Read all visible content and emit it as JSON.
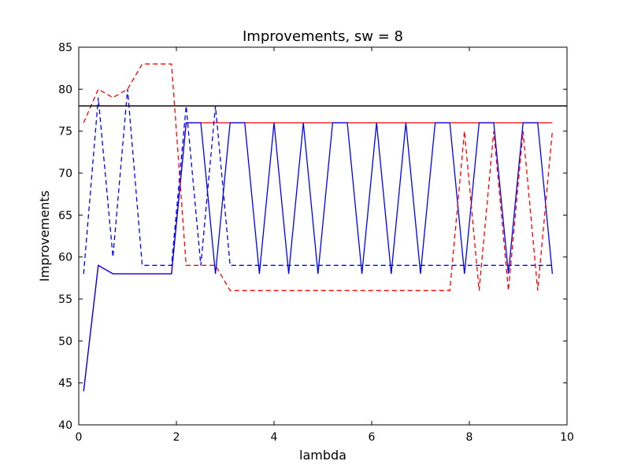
{
  "chart_data": {
    "type": "line",
    "title": "Improvements, sw = 8",
    "xlabel": "lambda",
    "ylabel": "Improvements",
    "xlim": [
      0,
      10
    ],
    "ylim": [
      40,
      85
    ],
    "xticks": [
      0,
      2,
      4,
      6,
      8,
      10
    ],
    "yticks": [
      40,
      45,
      50,
      55,
      60,
      65,
      70,
      75,
      80,
      85
    ],
    "xtick_labels": [
      "0",
      "2",
      "4",
      "6",
      "8",
      "10"
    ],
    "ytick_labels": [
      "40",
      "45",
      "50",
      "55",
      "60",
      "65",
      "70",
      "75",
      "80",
      "85"
    ],
    "grid": false,
    "legend": "none",
    "hlines": [
      {
        "y": 78,
        "color": "#000000",
        "style": "solid"
      }
    ],
    "series": [
      {
        "color": "#ff0000",
        "style": "solid",
        "x": [
          0.1,
          0.4,
          0.7,
          1.0,
          1.3,
          1.6,
          1.9,
          2.2,
          2.5,
          2.8,
          3.1,
          3.4,
          3.7,
          4.0,
          4.3,
          4.6,
          4.9,
          5.2,
          5.5,
          5.8,
          6.1,
          6.4,
          6.7,
          7.0,
          7.3,
          7.6,
          7.9,
          8.2,
          8.5,
          8.8,
          9.1,
          9.4,
          9.7
        ],
        "y": [
          44,
          59,
          58,
          58,
          58,
          58,
          58,
          76,
          76,
          76,
          76,
          76,
          76,
          76,
          76,
          76,
          76,
          76,
          76,
          76,
          76,
          76,
          76,
          76,
          76,
          76,
          76,
          76,
          76,
          76,
          76,
          76,
          76
        ]
      },
      {
        "color": "#0000ff",
        "style": "solid",
        "x": [
          0.1,
          0.4,
          0.7,
          1.0,
          1.3,
          1.6,
          1.9,
          2.2,
          2.5,
          2.8,
          3.1,
          3.4,
          3.7,
          4.0,
          4.3,
          4.6,
          4.9,
          5.2,
          5.5,
          5.8,
          6.1,
          6.4,
          6.7,
          7.0,
          7.3,
          7.6,
          7.9,
          8.2,
          8.5,
          8.8,
          9.1,
          9.4,
          9.7
        ],
        "y": [
          44,
          59,
          58,
          58,
          58,
          58,
          58,
          76,
          76,
          58,
          76,
          76,
          58,
          76,
          58,
          76,
          58,
          76,
          76,
          58,
          76,
          58,
          76,
          58,
          76,
          76,
          58,
          76,
          76,
          58,
          76,
          76,
          58
        ]
      },
      {
        "color": "#ff0000",
        "style": "dashed",
        "x": [
          0.1,
          0.4,
          0.7,
          1.0,
          1.3,
          1.6,
          1.9,
          2.2,
          2.5,
          2.8,
          3.1,
          3.4,
          3.7,
          4.0,
          4.3,
          4.6,
          4.9,
          5.2,
          5.5,
          5.8,
          6.1,
          6.4,
          6.7,
          7.0,
          7.3,
          7.6,
          7.9,
          8.2,
          8.5,
          8.8,
          9.1,
          9.4,
          9.7
        ],
        "y": [
          76,
          80,
          79,
          80,
          83,
          83,
          83,
          59,
          59,
          59,
          56,
          56,
          56,
          56,
          56,
          56,
          56,
          56,
          56,
          56,
          56,
          56,
          56,
          56,
          56,
          56,
          75,
          56,
          75,
          56,
          75,
          56,
          75
        ]
      },
      {
        "color": "#0000ff",
        "style": "dashed",
        "x": [
          0.1,
          0.4,
          0.7,
          1.0,
          1.3,
          1.6,
          1.9,
          2.2,
          2.5,
          2.8,
          3.1,
          3.4,
          3.7,
          4.0,
          4.3,
          4.6,
          4.9,
          5.2,
          5.5,
          5.8,
          6.1,
          6.4,
          6.7,
          7.0,
          7.3,
          7.6,
          7.9,
          8.2,
          8.5,
          8.8,
          9.1,
          9.4,
          9.7
        ],
        "y": [
          58,
          79,
          60,
          80,
          59,
          59,
          59,
          78,
          59,
          78,
          59,
          59,
          59,
          59,
          59,
          59,
          59,
          59,
          59,
          59,
          59,
          59,
          59,
          59,
          59,
          59,
          59,
          59,
          59,
          59,
          59,
          59,
          59
        ]
      }
    ]
  }
}
